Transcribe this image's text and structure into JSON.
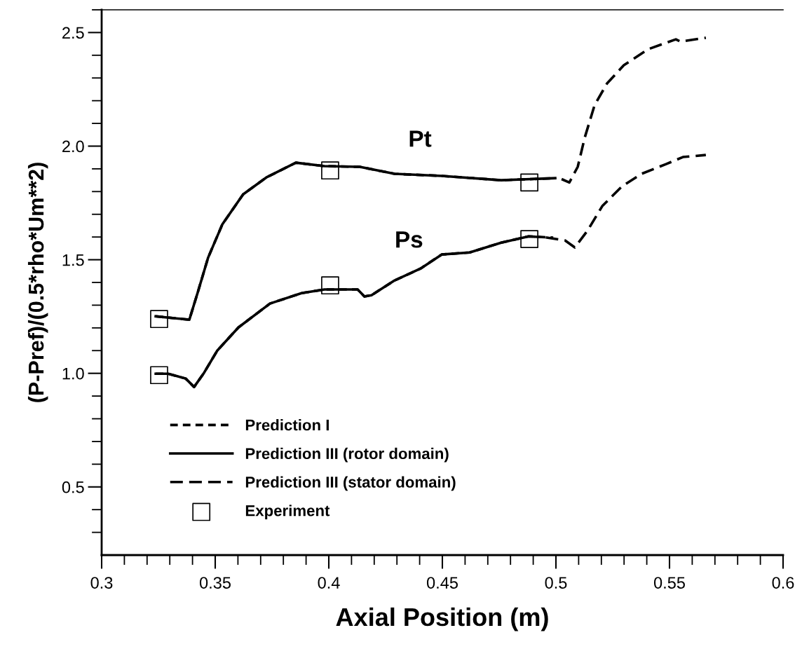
{
  "chart_data": {
    "type": "line",
    "xlabel": "Axial Position (m)",
    "ylabel": "(P-Pref)/(0.5*rho*Um**2)",
    "xlim": [
      0.3,
      0.6
    ],
    "ylim": [
      0.2,
      2.6
    ],
    "xticks": [
      0.3,
      {
        "value": 0.31,
        "label": null
      },
      {
        "value": 0.32,
        "label": null
      },
      {
        "value": 0.33,
        "label": null
      },
      {
        "value": 0.34,
        "label": null
      },
      0.35,
      {
        "value": 0.36,
        "label": null
      },
      {
        "value": 0.37,
        "label": null
      },
      {
        "value": 0.38,
        "label": null
      },
      {
        "value": 0.39,
        "label": null
      },
      0.4,
      {
        "value": 0.41,
        "label": null
      },
      {
        "value": 0.42,
        "label": null
      },
      {
        "value": 0.43,
        "label": null
      },
      {
        "value": 0.44,
        "label": null
      },
      0.45,
      {
        "value": 0.46,
        "label": null
      },
      {
        "value": 0.47,
        "label": null
      },
      {
        "value": 0.48,
        "label": null
      },
      {
        "value": 0.49,
        "label": null
      },
      0.5,
      {
        "value": 0.51,
        "label": null
      },
      {
        "value": 0.52,
        "label": null
      },
      {
        "value": 0.53,
        "label": null
      },
      {
        "value": 0.54,
        "label": null
      },
      0.55,
      {
        "value": 0.56,
        "label": null
      },
      {
        "value": 0.57,
        "label": null
      },
      {
        "value": 0.58,
        "label": null
      },
      {
        "value": 0.59,
        "label": null
      },
      0.6
    ],
    "yticks": [
      {
        "value": 0.3,
        "label": null
      },
      {
        "value": 0.4,
        "label": null
      },
      0.5,
      {
        "value": 0.6,
        "label": null
      },
      {
        "value": 0.7,
        "label": null
      },
      {
        "value": 0.8,
        "label": null
      },
      {
        "value": 0.9,
        "label": null
      },
      {
        "value": 1.0,
        "label": "1.0"
      },
      {
        "value": 1.1,
        "label": null
      },
      {
        "value": 1.2,
        "label": null
      },
      {
        "value": 1.3,
        "label": null
      },
      {
        "value": 1.4,
        "label": null
      },
      1.5,
      {
        "value": 1.6,
        "label": null
      },
      {
        "value": 1.7,
        "label": null
      },
      {
        "value": 1.8,
        "label": null
      },
      {
        "value": 1.9,
        "label": null
      },
      {
        "value": 2.0,
        "label": "2.0"
      },
      {
        "value": 2.1,
        "label": null
      },
      {
        "value": 2.2,
        "label": null
      },
      {
        "value": 2.3,
        "label": null
      },
      {
        "value": 2.4,
        "label": null
      },
      2.5,
      {
        "value": 2.6,
        "label": null
      }
    ],
    "grid": false,
    "legend": "bottom left",
    "marker": "none",
    "annotations": [
      "Pt",
      "Ps"
    ],
    "series": [
      {
        "name": "Prediction I",
        "color": "#000000",
        "line_style": "dotted",
        "x": [
          0.3238,
          0.3386,
          0.3423,
          0.3469,
          0.3531,
          0.3623,
          0.3725,
          0.3855,
          0.3981,
          0.4136,
          0.429,
          0.4497,
          0.4759,
          0.4997
        ],
        "values": [
          1.251,
          1.236,
          1.356,
          1.51,
          1.655,
          1.788,
          1.862,
          1.927,
          1.912,
          1.909,
          1.878,
          1.869,
          1.85,
          1.859
        ]
      },
      {
        "color": "#000000",
        "line_style": "dotted",
        "x": [
          0.3238,
          0.3293,
          0.337,
          0.3407,
          0.3448,
          0.3509,
          0.3602,
          0.3741,
          0.388,
          0.3981,
          0.4127,
          0.4157,
          0.4188,
          0.429,
          0.4404,
          0.4497,
          0.462,
          0.4759,
          0.488,
          0.4988
        ],
        "values": [
          0.998,
          0.998,
          0.977,
          0.94,
          0.998,
          1.1,
          1.202,
          1.307,
          1.353,
          1.369,
          1.369,
          1.338,
          1.344,
          1.409,
          1.461,
          1.523,
          1.532,
          1.575,
          1.603,
          1.597
        ]
      },
      {
        "name": "Prediction III (rotor domain)",
        "color": "#000000",
        "line_style": "solid",
        "x": [
          0.3238,
          0.3386,
          0.3423,
          0.3469,
          0.3531,
          0.3623,
          0.3725,
          0.3855,
          0.3981,
          0.4136,
          0.429,
          0.4497,
          0.4759,
          0.4997
        ],
        "values": [
          1.251,
          1.236,
          1.356,
          1.51,
          1.655,
          1.788,
          1.862,
          1.927,
          1.912,
          1.909,
          1.878,
          1.869,
          1.85,
          1.859
        ]
      },
      {
        "color": "#000000",
        "line_style": "solid",
        "x": [
          0.3238,
          0.3293,
          0.337,
          0.3407,
          0.3448,
          0.3509,
          0.3602,
          0.3741,
          0.388,
          0.3981,
          0.4127,
          0.4157,
          0.4188,
          0.429,
          0.4404,
          0.4497,
          0.462,
          0.4759,
          0.488,
          0.4925
        ],
        "values": [
          0.998,
          0.998,
          0.977,
          0.94,
          0.998,
          1.1,
          1.202,
          1.307,
          1.353,
          1.369,
          1.369,
          1.338,
          1.344,
          1.409,
          1.461,
          1.523,
          1.532,
          1.575,
          1.603,
          1.6
        ]
      },
      {
        "name": "Prediction III (stator domain)",
        "color": "#000000",
        "line_style": "dashed",
        "x": [
          0.5025,
          0.5059,
          0.5096,
          0.5127,
          0.517,
          0.5225,
          0.5299,
          0.5407,
          0.5528,
          0.5549,
          0.566
        ],
        "values": [
          1.855,
          1.84,
          1.909,
          2.038,
          2.18,
          2.276,
          2.356,
          2.427,
          2.47,
          2.46,
          2.477
        ]
      },
      {
        "color": "#000000",
        "line_style": "dashed",
        "x": [
          0.4955,
          0.504,
          0.5083,
          0.5139,
          0.5204,
          0.529,
          0.5377,
          0.5485,
          0.5559,
          0.566
        ],
        "values": [
          1.598,
          1.585,
          1.554,
          1.628,
          1.736,
          1.822,
          1.878,
          1.921,
          1.952,
          1.961
        ]
      },
      {
        "name": "Experiment",
        "type": "scatter",
        "marker": "square",
        "color": "#000000",
        "x": [
          0.3253,
          0.3253,
          0.4006,
          0.4006,
          0.4883,
          0.4883
        ],
        "values": [
          1.239,
          0.992,
          1.893,
          1.387,
          1.84,
          1.591
        ]
      }
    ]
  }
}
